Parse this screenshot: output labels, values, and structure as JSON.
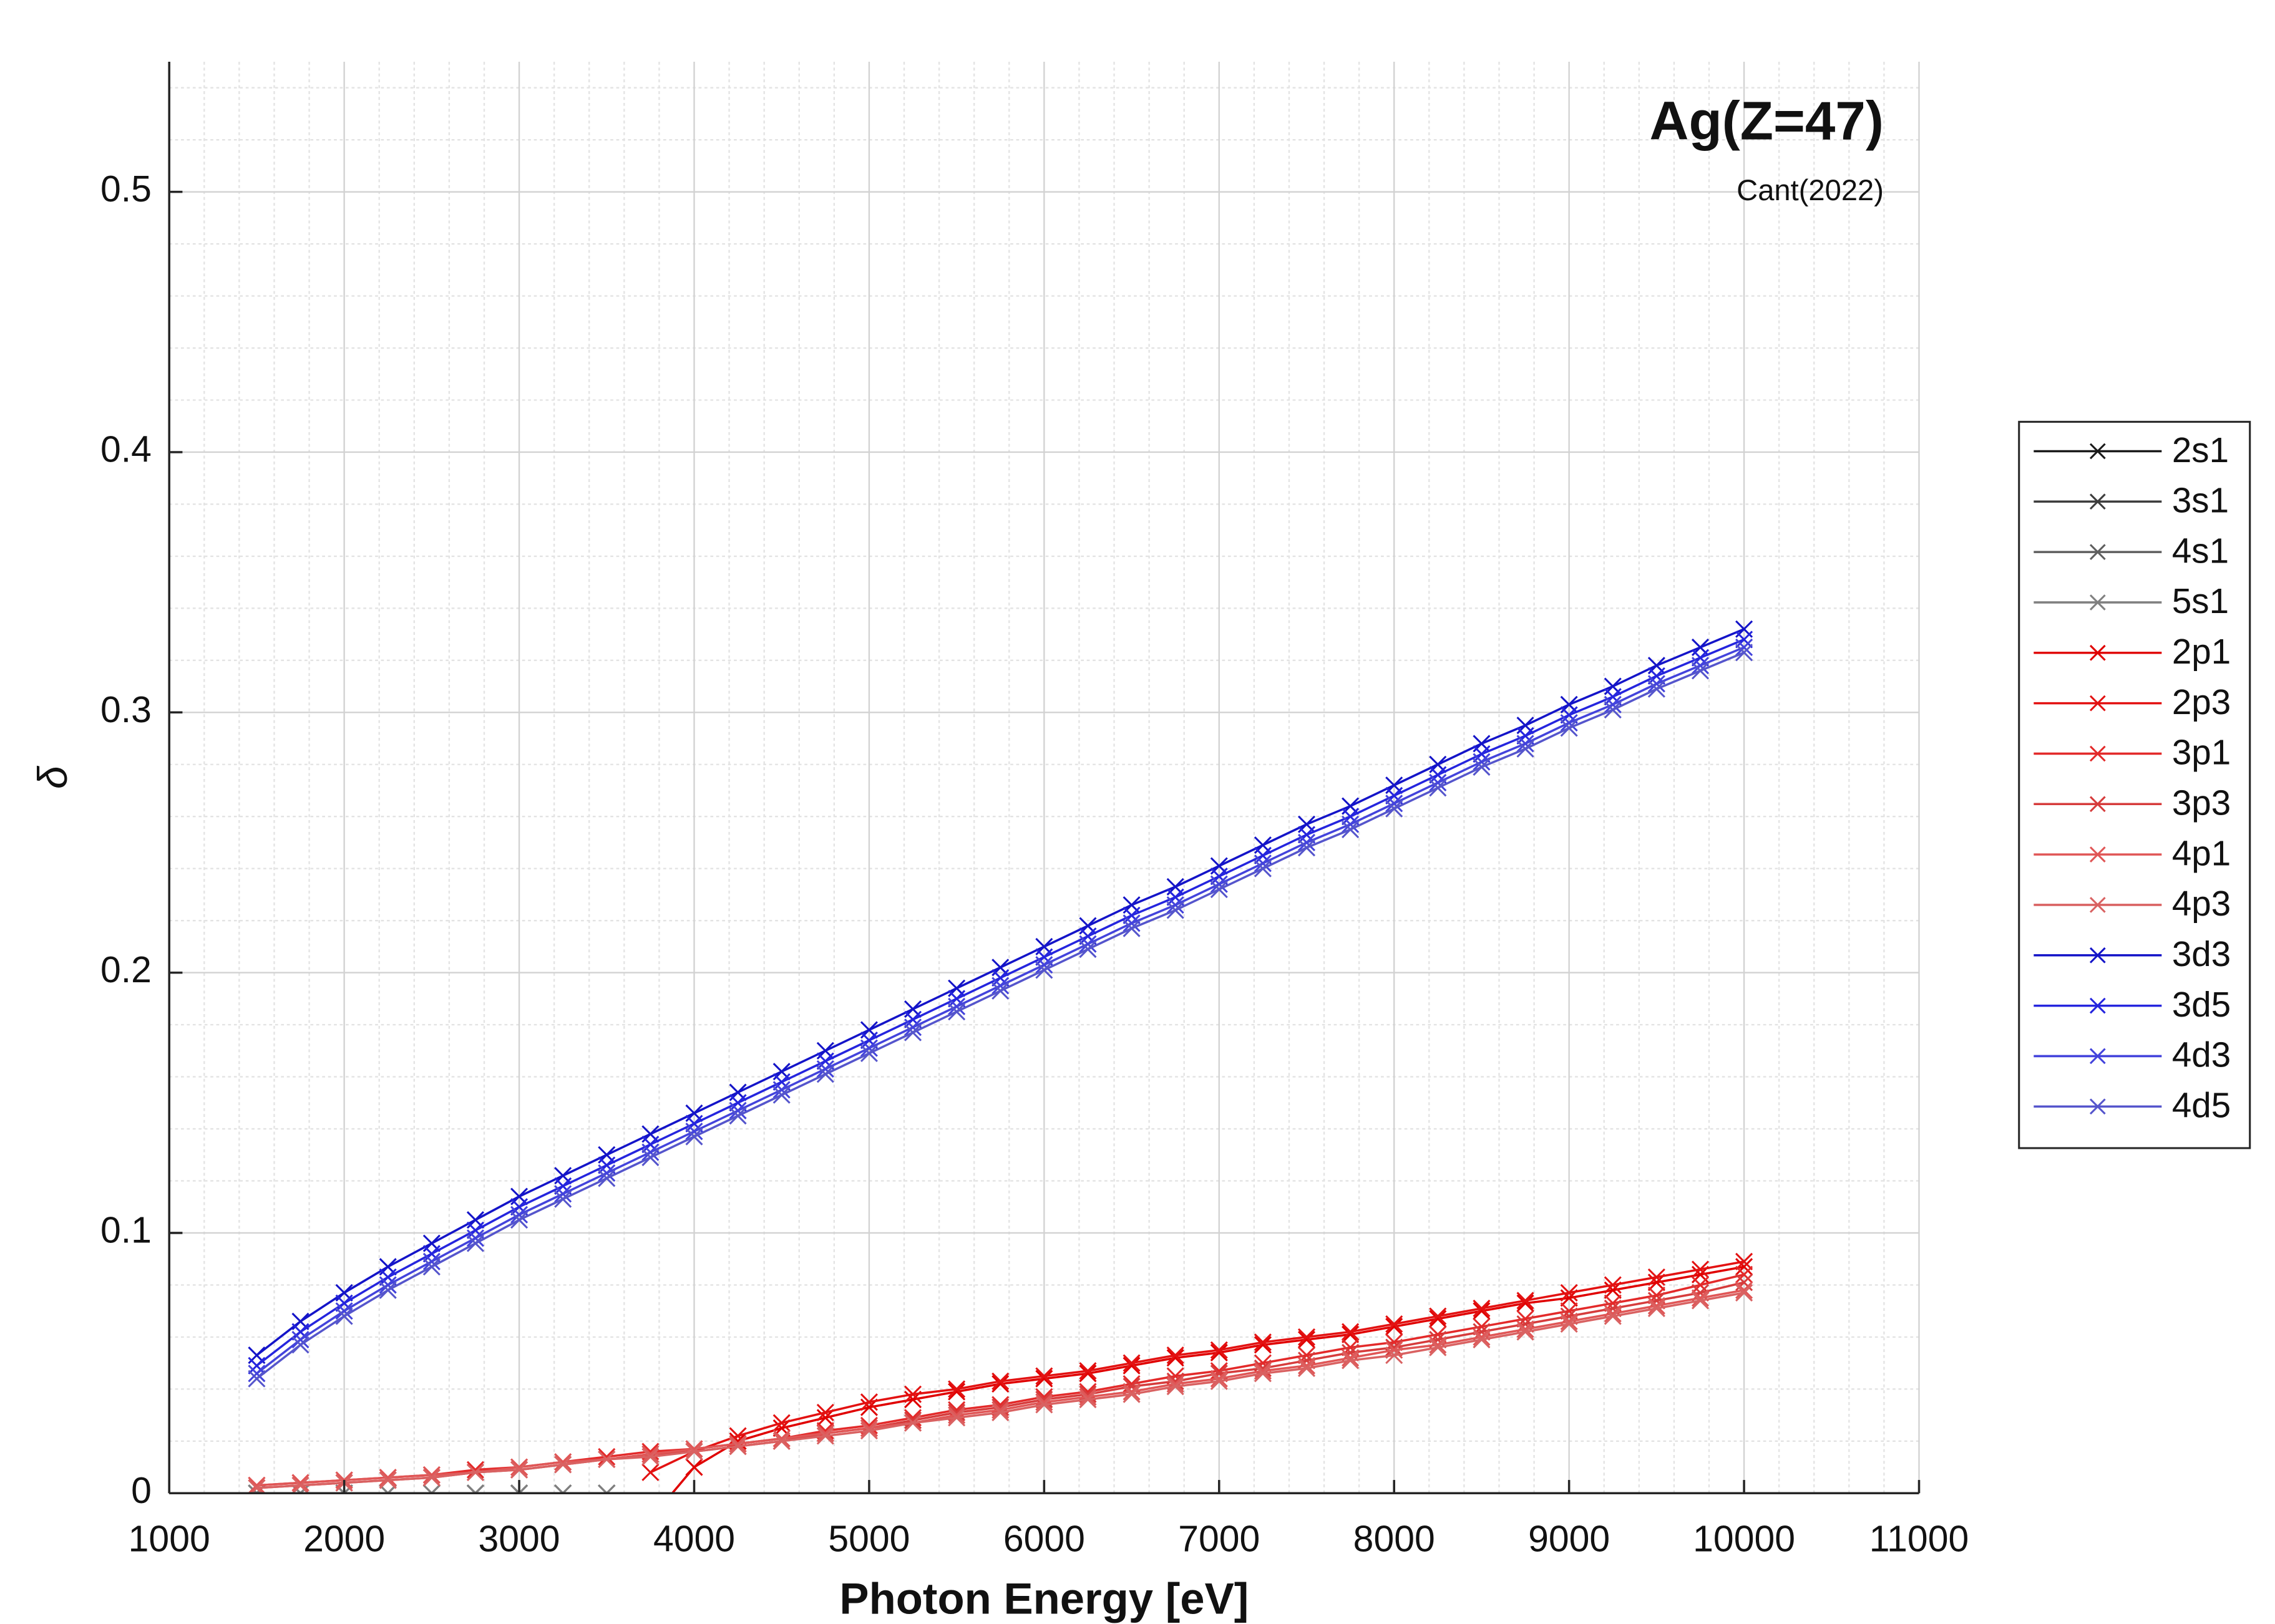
{
  "chart_data": {
    "type": "line",
    "title": "Ag(Z=47)",
    "subtitle": "Cant(2022)",
    "x_label": "Photon Energy [eV]",
    "y_label": "δ",
    "x": [
      1500,
      1750,
      2000,
      2250,
      2500,
      2750,
      3000,
      3250,
      3500,
      3750,
      4000,
      4250,
      4500,
      4750,
      5000,
      5250,
      5500,
      5750,
      6000,
      6250,
      6500,
      6750,
      7000,
      7250,
      7500,
      7750,
      8000,
      8250,
      8500,
      8750,
      9000,
      9250,
      9500,
      9750,
      10000
    ],
    "xlim": [
      1000,
      11000
    ],
    "xticks": [
      1000,
      2000,
      3000,
      4000,
      5000,
      6000,
      7000,
      8000,
      9000,
      10000,
      11000
    ],
    "ylim": [
      0,
      0.55
    ],
    "yticks": [
      0,
      0.1,
      0.2,
      0.3,
      0.4,
      0.5
    ],
    "grid": true,
    "minor_grid": true,
    "legend": "east outside",
    "marker": "x",
    "series": [
      {
        "name": "2s1",
        "color": "#1a1a1a",
        "values": [
          0,
          0,
          0,
          0,
          0,
          0,
          0,
          0,
          0,
          null,
          null,
          null,
          null,
          null,
          null,
          null,
          null,
          null,
          null,
          null,
          null,
          null,
          null,
          null,
          null,
          null,
          null,
          null,
          null,
          null,
          null,
          null,
          null,
          null,
          null
        ]
      },
      {
        "name": "3s1",
        "color": "#3d3d3d",
        "values": [
          0,
          0,
          0,
          0,
          0,
          0,
          0,
          0,
          0,
          null,
          null,
          null,
          null,
          null,
          null,
          null,
          null,
          null,
          null,
          null,
          null,
          null,
          null,
          null,
          null,
          null,
          null,
          null,
          null,
          null,
          null,
          null,
          null,
          null,
          null
        ]
      },
      {
        "name": "4s1",
        "color": "#5e5e5e",
        "values": [
          0,
          0,
          0,
          0,
          0,
          0,
          0,
          0,
          0,
          null,
          null,
          null,
          null,
          null,
          null,
          null,
          null,
          null,
          null,
          null,
          null,
          null,
          null,
          null,
          null,
          null,
          null,
          null,
          null,
          null,
          null,
          null,
          null,
          null,
          null
        ]
      },
      {
        "name": "5s1",
        "color": "#808080",
        "values": [
          0,
          0,
          0,
          0,
          0,
          0,
          0,
          0,
          0,
          null,
          null,
          null,
          null,
          null,
          null,
          null,
          null,
          null,
          null,
          null,
          null,
          null,
          null,
          null,
          null,
          null,
          null,
          null,
          null,
          null,
          null,
          null,
          null,
          null,
          null
        ]
      },
      {
        "name": "2p1",
        "color": "#e00000",
        "values": [
          null,
          null,
          null,
          null,
          null,
          null,
          null,
          null,
          null,
          -0.01,
          0.01,
          0.02,
          0.025,
          0.029,
          0.033,
          0.036,
          0.039,
          0.042,
          0.044,
          0.046,
          0.049,
          0.052,
          0.054,
          0.057,
          0.059,
          0.061,
          0.064,
          0.067,
          0.07,
          0.073,
          0.075,
          0.078,
          0.081,
          0.084,
          0.087
        ]
      },
      {
        "name": "2p3",
        "color": "#e31212",
        "values": [
          null,
          null,
          null,
          null,
          null,
          null,
          null,
          null,
          null,
          0.008,
          0.016,
          0.022,
          0.027,
          0.031,
          0.035,
          0.038,
          0.04,
          0.043,
          0.045,
          0.047,
          0.05,
          0.053,
          0.055,
          0.058,
          0.06,
          0.062,
          0.065,
          0.068,
          0.071,
          0.074,
          0.077,
          0.08,
          0.083,
          0.086,
          0.089
        ]
      },
      {
        "name": "3p1",
        "color": "#e32a2a",
        "values": [
          0.003,
          0.004,
          0.005,
          0.006,
          0.007,
          0.009,
          0.01,
          0.012,
          0.014,
          0.016,
          0.017,
          0.019,
          0.021,
          0.024,
          0.026,
          0.029,
          0.032,
          0.034,
          0.037,
          0.039,
          0.042,
          0.045,
          0.047,
          0.05,
          0.053,
          0.056,
          0.058,
          0.061,
          0.064,
          0.067,
          0.07,
          0.073,
          0.076,
          0.08,
          0.084
        ]
      },
      {
        "name": "3p3",
        "color": "#d63c3c",
        "values": [
          0.002,
          0.003,
          0.004,
          0.005,
          0.006,
          0.008,
          0.009,
          0.011,
          0.013,
          0.015,
          0.016,
          0.018,
          0.02,
          0.023,
          0.025,
          0.028,
          0.031,
          0.033,
          0.036,
          0.038,
          0.041,
          0.043,
          0.046,
          0.048,
          0.051,
          0.054,
          0.056,
          0.059,
          0.062,
          0.065,
          0.068,
          0.071,
          0.074,
          0.077,
          0.081
        ]
      },
      {
        "name": "4p1",
        "color": "#e05656",
        "values": [
          0.003,
          0.004,
          0.005,
          0.006,
          0.007,
          0.008,
          0.01,
          0.012,
          0.013,
          0.015,
          0.017,
          0.019,
          0.021,
          0.023,
          0.025,
          0.027,
          0.03,
          0.032,
          0.035,
          0.037,
          0.039,
          0.042,
          0.044,
          0.047,
          0.049,
          0.052,
          0.055,
          0.057,
          0.06,
          0.063,
          0.066,
          0.069,
          0.072,
          0.075,
          0.078
        ]
      },
      {
        "name": "4p3",
        "color": "#d96262",
        "values": [
          0.002,
          0.003,
          0.004,
          0.005,
          0.006,
          0.008,
          0.009,
          0.011,
          0.013,
          0.014,
          0.016,
          0.018,
          0.02,
          0.022,
          0.024,
          0.027,
          0.029,
          0.031,
          0.034,
          0.036,
          0.038,
          0.041,
          0.043,
          0.046,
          0.048,
          0.051,
          0.053,
          0.056,
          0.059,
          0.062,
          0.065,
          0.068,
          0.071,
          0.074,
          0.077
        ]
      },
      {
        "name": "3d3",
        "color": "#1414c8",
        "values": [
          0.053,
          0.066,
          0.077,
          0.087,
          0.096,
          0.105,
          0.114,
          0.122,
          0.13,
          0.138,
          0.146,
          0.154,
          0.162,
          0.17,
          0.178,
          0.186,
          0.194,
          0.202,
          0.21,
          0.218,
          0.226,
          0.233,
          0.241,
          0.249,
          0.257,
          0.264,
          0.272,
          0.28,
          0.288,
          0.295,
          0.303,
          0.31,
          0.318,
          0.325,
          0.332
        ]
      },
      {
        "name": "3d5",
        "color": "#2525de",
        "values": [
          0.049,
          0.062,
          0.073,
          0.083,
          0.092,
          0.101,
          0.11,
          0.118,
          0.126,
          0.134,
          0.142,
          0.15,
          0.158,
          0.166,
          0.174,
          0.182,
          0.19,
          0.198,
          0.206,
          0.214,
          0.222,
          0.229,
          0.237,
          0.245,
          0.253,
          0.26,
          0.268,
          0.276,
          0.284,
          0.291,
          0.299,
          0.306,
          0.314,
          0.321,
          0.328
        ]
      },
      {
        "name": "4d3",
        "color": "#4343dc",
        "values": [
          0.046,
          0.059,
          0.07,
          0.08,
          0.089,
          0.098,
          0.107,
          0.115,
          0.123,
          0.131,
          0.139,
          0.147,
          0.155,
          0.163,
          0.171,
          0.179,
          0.187,
          0.195,
          0.203,
          0.211,
          0.219,
          0.226,
          0.234,
          0.242,
          0.25,
          0.257,
          0.265,
          0.273,
          0.281,
          0.288,
          0.296,
          0.303,
          0.311,
          0.318,
          0.325
        ]
      },
      {
        "name": "4d5",
        "color": "#5555cc",
        "values": [
          0.044,
          0.057,
          0.068,
          0.078,
          0.087,
          0.096,
          0.105,
          0.113,
          0.121,
          0.129,
          0.137,
          0.145,
          0.153,
          0.161,
          0.169,
          0.177,
          0.185,
          0.193,
          0.201,
          0.209,
          0.217,
          0.224,
          0.232,
          0.24,
          0.248,
          0.255,
          0.263,
          0.271,
          0.279,
          0.286,
          0.294,
          0.301,
          0.309,
          0.316,
          0.323
        ]
      }
    ]
  }
}
